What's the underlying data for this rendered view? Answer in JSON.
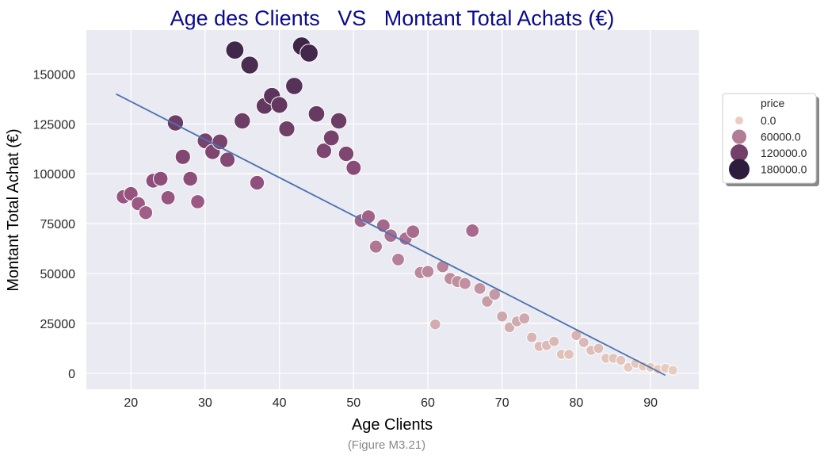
{
  "colors": {
    "title": "#0a0a8c",
    "plot_background": "#eaeaf2",
    "grid": "#ffffff",
    "fit_line": "#4c72b0",
    "caption": "#888888"
  },
  "chart_data": {
    "type": "scatter",
    "title": "Age des Clients   VS   Montant Total Achats (€)",
    "xlabel": "Age Clients",
    "ylabel": "Montant Total Achat (€)",
    "xlim": [
      14,
      96.5
    ],
    "ylim": [
      -8000,
      172000
    ],
    "xticks": [
      20,
      30,
      40,
      50,
      60,
      70,
      80,
      90
    ],
    "yticks": [
      0,
      25000,
      50000,
      75000,
      100000,
      125000,
      150000
    ],
    "grid": true,
    "hue_variable": "price",
    "size_variable": "price",
    "legend": {
      "title": "price",
      "placement": "right",
      "entries": [
        {
          "label": "0.0",
          "value": 0
        },
        {
          "label": "60000.0",
          "value": 60000
        },
        {
          "label": "120000.0",
          "value": 120000
        },
        {
          "label": "180000.0",
          "value": 180000
        }
      ]
    },
    "points": [
      {
        "x": 19,
        "y": 88500
      },
      {
        "x": 20,
        "y": 90000
      },
      {
        "x": 21,
        "y": 85000
      },
      {
        "x": 22,
        "y": 80500
      },
      {
        "x": 23,
        "y": 96500
      },
      {
        "x": 24,
        "y": 97500
      },
      {
        "x": 25,
        "y": 88000
      },
      {
        "x": 26,
        "y": 125500
      },
      {
        "x": 27,
        "y": 108500
      },
      {
        "x": 28,
        "y": 97500
      },
      {
        "x": 29,
        "y": 86000
      },
      {
        "x": 30,
        "y": 116500
      },
      {
        "x": 31,
        "y": 111000
      },
      {
        "x": 32,
        "y": 116000
      },
      {
        "x": 33,
        "y": 107000
      },
      {
        "x": 34,
        "y": 162000
      },
      {
        "x": 35,
        "y": 126500
      },
      {
        "x": 36,
        "y": 154500
      },
      {
        "x": 37,
        "y": 95500
      },
      {
        "x": 38,
        "y": 134000
      },
      {
        "x": 39,
        "y": 139000
      },
      {
        "x": 40,
        "y": 134500
      },
      {
        "x": 41,
        "y": 122500
      },
      {
        "x": 42,
        "y": 144000
      },
      {
        "x": 43,
        "y": 164000
      },
      {
        "x": 44,
        "y": 160500
      },
      {
        "x": 45,
        "y": 130000
      },
      {
        "x": 46,
        "y": 111500
      },
      {
        "x": 47,
        "y": 118000
      },
      {
        "x": 48,
        "y": 126500
      },
      {
        "x": 49,
        "y": 110000
      },
      {
        "x": 50,
        "y": 103000
      },
      {
        "x": 51,
        "y": 76500
      },
      {
        "x": 52,
        "y": 78500
      },
      {
        "x": 53,
        "y": 63500
      },
      {
        "x": 54,
        "y": 74000
      },
      {
        "x": 55,
        "y": 69000
      },
      {
        "x": 56,
        "y": 57000
      },
      {
        "x": 57,
        "y": 67500
      },
      {
        "x": 58,
        "y": 71000
      },
      {
        "x": 59,
        "y": 50500
      },
      {
        "x": 60,
        "y": 51000
      },
      {
        "x": 61,
        "y": 24500
      },
      {
        "x": 62,
        "y": 53500
      },
      {
        "x": 63,
        "y": 47500
      },
      {
        "x": 64,
        "y": 46000
      },
      {
        "x": 65,
        "y": 45000
      },
      {
        "x": 66,
        "y": 71500
      },
      {
        "x": 67,
        "y": 42500
      },
      {
        "x": 68,
        "y": 36000
      },
      {
        "x": 69,
        "y": 39500
      },
      {
        "x": 70,
        "y": 28500
      },
      {
        "x": 71,
        "y": 23000
      },
      {
        "x": 72,
        "y": 26000
      },
      {
        "x": 73,
        "y": 27500
      },
      {
        "x": 74,
        "y": 18000
      },
      {
        "x": 75,
        "y": 13500
      },
      {
        "x": 76,
        "y": 14000
      },
      {
        "x": 77,
        "y": 16000
      },
      {
        "x": 78,
        "y": 9500
      },
      {
        "x": 79,
        "y": 9500
      },
      {
        "x": 80,
        "y": 19000
      },
      {
        "x": 81,
        "y": 15500
      },
      {
        "x": 82,
        "y": 11500
      },
      {
        "x": 83,
        "y": 12500
      },
      {
        "x": 84,
        "y": 7500
      },
      {
        "x": 85,
        "y": 7500
      },
      {
        "x": 86,
        "y": 6500
      },
      {
        "x": 87,
        "y": 3000
      },
      {
        "x": 88,
        "y": 5000
      },
      {
        "x": 89,
        "y": 3500
      },
      {
        "x": 90,
        "y": 3000
      },
      {
        "x": 91,
        "y": 2000
      },
      {
        "x": 92,
        "y": 2500
      },
      {
        "x": 93,
        "y": 1500
      }
    ],
    "fit_line": {
      "x": [
        18,
        92
      ],
      "y": [
        140000,
        -1000
      ]
    }
  },
  "caption": "(Figure M3.21)"
}
